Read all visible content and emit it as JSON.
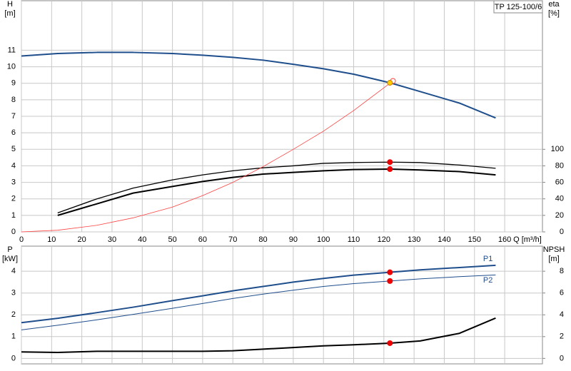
{
  "chart_data": [
    {
      "type": "line",
      "title": "TP 125-100/6",
      "x_label": "Q [m³/h]",
      "y_label": "H",
      "y_unit": "[m]",
      "y2_label": "eta",
      "y2_unit": "[%]",
      "xlim": [
        0,
        172.5
      ],
      "xticks": [
        0,
        10,
        20,
        30,
        40,
        50,
        60,
        70,
        80,
        90,
        100,
        110,
        120,
        130,
        140,
        150,
        160
      ],
      "show_xtick_labels": true,
      "ylim": [
        0,
        14
      ],
      "yticks": [
        0,
        1,
        2,
        3,
        4,
        5,
        6,
        7,
        8,
        9,
        10,
        11
      ],
      "y2lim": [
        0,
        280
      ],
      "y2ticks": [
        0,
        20,
        40,
        60,
        80,
        100
      ],
      "grid": true,
      "series": [
        {
          "color": "#1f4e8c",
          "width": 2,
          "axis": "y",
          "x": [
            0,
            12,
            25,
            37,
            50,
            60,
            70,
            80,
            90,
            100,
            110,
            122,
            132,
            145,
            157
          ],
          "values": [
            10.65,
            10.8,
            10.87,
            10.87,
            10.8,
            10.7,
            10.57,
            10.4,
            10.15,
            9.88,
            9.55,
            9.03,
            8.5,
            7.8,
            6.9
          ]
        },
        {
          "color": "#000000",
          "width": 2,
          "axis": "y2",
          "x": [
            12,
            25,
            37,
            50,
            60,
            70,
            80,
            90,
            100,
            110,
            122,
            132,
            145,
            157
          ],
          "values": [
            20,
            34,
            47,
            55,
            61,
            66,
            70,
            72,
            74,
            75.5,
            76,
            75,
            73,
            69
          ]
        },
        {
          "color": "#000000",
          "width": 1.3,
          "axis": "y2",
          "x": [
            12,
            25,
            37,
            50,
            60,
            70,
            80,
            90,
            100,
            110,
            122,
            132,
            145,
            157
          ],
          "values": [
            23,
            40,
            53,
            63,
            69,
            74,
            77.6,
            80,
            83,
            84,
            84.5,
            84,
            81,
            77
          ]
        },
        {
          "color": "#ff4040",
          "width": 0.8,
          "axis": "y",
          "x": [
            0,
            12,
            25,
            37,
            50,
            60,
            70,
            80,
            90,
            100,
            110,
            122,
            123
          ],
          "values": [
            0,
            0.1,
            0.4,
            0.85,
            1.5,
            2.2,
            3.0,
            3.95,
            5.0,
            6.1,
            7.35,
            9.0,
            9.14
          ]
        }
      ],
      "points": [
        {
          "x": 123,
          "y": 9.14,
          "axis": "y",
          "color": "#ff4040",
          "marker": "open"
        },
        {
          "x": 122,
          "y": 9.03,
          "axis": "y",
          "color": "#ffcc00",
          "marker": "filled"
        },
        {
          "x": 122,
          "y": 84.5,
          "axis": "y2",
          "color": "#ee0000",
          "marker": "filled"
        },
        {
          "x": 122,
          "y": 76,
          "axis": "y2",
          "color": "#ee0000",
          "marker": "filled"
        }
      ]
    },
    {
      "type": "line",
      "y_label": "P",
      "y_unit": "[kW]",
      "y2_label": "NPSH",
      "y2_unit": "[m]",
      "xlim": [
        0,
        172.5
      ],
      "xticks": [
        0,
        10,
        20,
        30,
        40,
        50,
        60,
        70,
        80,
        90,
        100,
        110,
        120,
        130,
        140,
        150,
        160
      ],
      "show_xtick_labels": false,
      "ylim": [
        -0.25,
        5.15
      ],
      "yticks": [
        0,
        1,
        2,
        3,
        4
      ],
      "y2lim": [
        -0.5,
        10.3
      ],
      "y2ticks": [
        0,
        2,
        4,
        6,
        8
      ],
      "grid": true,
      "series": [
        {
          "name": "P1",
          "color": "#1f4e8c",
          "width": 2,
          "axis": "y",
          "x": [
            0,
            12,
            25,
            37,
            50,
            60,
            70,
            80,
            90,
            100,
            110,
            122,
            132,
            145,
            157
          ],
          "values": [
            1.64,
            1.84,
            2.1,
            2.35,
            2.65,
            2.87,
            3.1,
            3.3,
            3.5,
            3.67,
            3.82,
            3.95,
            4.06,
            4.17,
            4.27
          ]
        },
        {
          "name": "P2",
          "color": "#1f4e8c",
          "width": 1,
          "axis": "y",
          "x": [
            0,
            12,
            25,
            37,
            50,
            60,
            70,
            80,
            90,
            100,
            110,
            122,
            132,
            145,
            157
          ],
          "values": [
            1.31,
            1.52,
            1.77,
            2.02,
            2.3,
            2.52,
            2.75,
            2.95,
            3.13,
            3.3,
            3.43,
            3.55,
            3.65,
            3.75,
            3.83
          ]
        },
        {
          "color": "#000000",
          "width": 2,
          "axis": "y2",
          "x": [
            0,
            12,
            25,
            37,
            50,
            60,
            70,
            80,
            90,
            100,
            110,
            122,
            132,
            145,
            157
          ],
          "values": [
            0.6,
            0.55,
            0.65,
            0.65,
            0.65,
            0.65,
            0.7,
            0.85,
            1.0,
            1.15,
            1.25,
            1.4,
            1.6,
            2.3,
            3.7
          ]
        }
      ],
      "points": [
        {
          "x": 122,
          "y": 3.95,
          "axis": "y",
          "color": "#ee0000",
          "marker": "filled"
        },
        {
          "x": 122,
          "y": 3.55,
          "axis": "y",
          "color": "#ee0000",
          "marker": "filled"
        },
        {
          "x": 122,
          "y": 1.4,
          "axis": "y2",
          "color": "#ee0000",
          "marker": "filled"
        }
      ]
    }
  ]
}
